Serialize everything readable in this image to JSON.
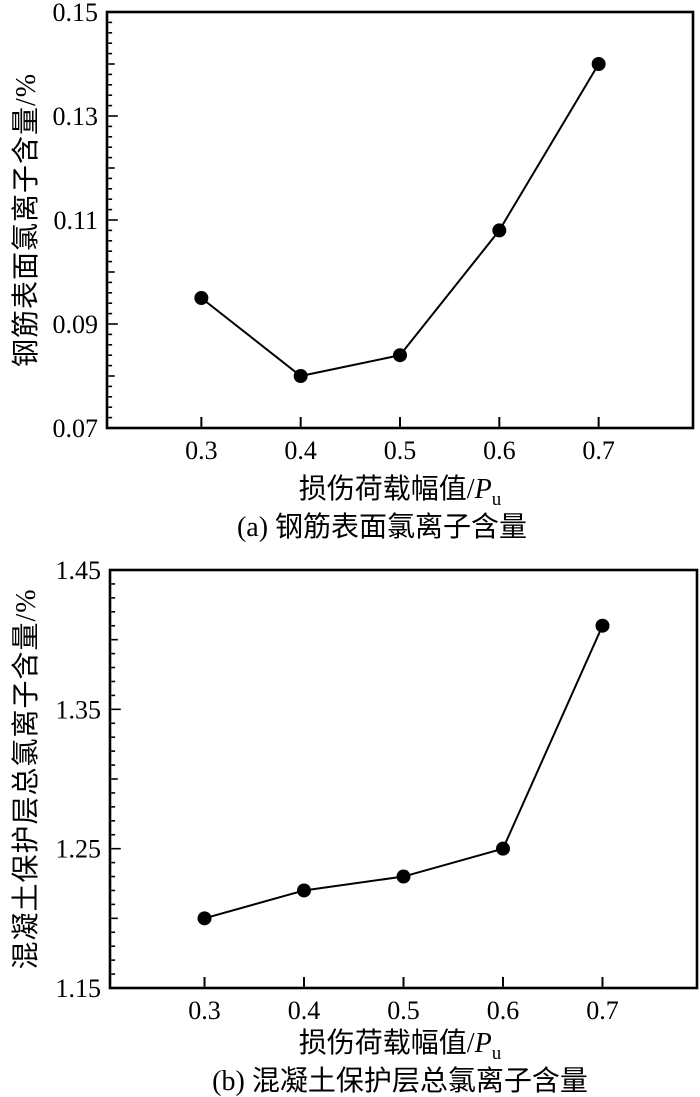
{
  "figure": {
    "background": "#ffffff",
    "ink_color": "#000000"
  },
  "chart_data": [
    {
      "type": "line",
      "x": [
        0.3,
        0.4,
        0.5,
        0.6,
        0.7
      ],
      "values": [
        0.095,
        0.08,
        0.084,
        0.108,
        0.14
      ],
      "xlabel_prefix": "损伤荷载幅值/",
      "xlabel_symbol": "P",
      "xlabel_subscript": "u",
      "ylabel": "钢筋表面氯离子含量/%",
      "caption": "(a) 钢筋表面氯离子含量",
      "xlim": [
        0.205,
        0.795
      ],
      "ylim": [
        0.07,
        0.15
      ],
      "xticks": [
        0.3,
        0.4,
        0.5,
        0.6,
        0.7
      ],
      "xtick_labels": [
        "0.3",
        "0.4",
        "0.5",
        "0.6",
        "0.7"
      ],
      "yticks": [
        0.07,
        0.09,
        0.11,
        0.13,
        0.15
      ],
      "ytick_labels": [
        "0.07",
        "0.09",
        "0.11",
        "0.13",
        "0.15"
      ],
      "ytick_step": 0.02,
      "y_medium_step": 0.01,
      "y_minor_step": 0.002,
      "grid": false,
      "legend": "none",
      "marker": "filled-circle",
      "line_color": "#000000",
      "marker_color": "#000000"
    },
    {
      "type": "line",
      "x": [
        0.3,
        0.4,
        0.5,
        0.6,
        0.7
      ],
      "values": [
        1.2,
        1.22,
        1.23,
        1.25,
        1.41
      ],
      "xlabel_prefix": "损伤荷载幅值/",
      "xlabel_symbol": "P",
      "xlabel_subscript": "u",
      "ylabel": "混凝土保护层总氯离子含量/%",
      "caption": "(b) 混凝土保护层总氯离子含量",
      "xlim": [
        0.205,
        0.795
      ],
      "ylim": [
        1.15,
        1.45
      ],
      "xticks": [
        0.3,
        0.4,
        0.5,
        0.6,
        0.7
      ],
      "xtick_labels": [
        "0.3",
        "0.4",
        "0.5",
        "0.6",
        "0.7"
      ],
      "yticks": [
        1.15,
        1.25,
        1.35,
        1.45
      ],
      "ytick_labels": [
        "1.15",
        "1.25",
        "1.35",
        "1.45"
      ],
      "ytick_step": 0.1,
      "y_medium_step": 0.05,
      "y_minor_step": 0.01,
      "grid": false,
      "legend": "none",
      "marker": "filled-circle",
      "line_color": "#000000",
      "marker_color": "#000000"
    }
  ]
}
